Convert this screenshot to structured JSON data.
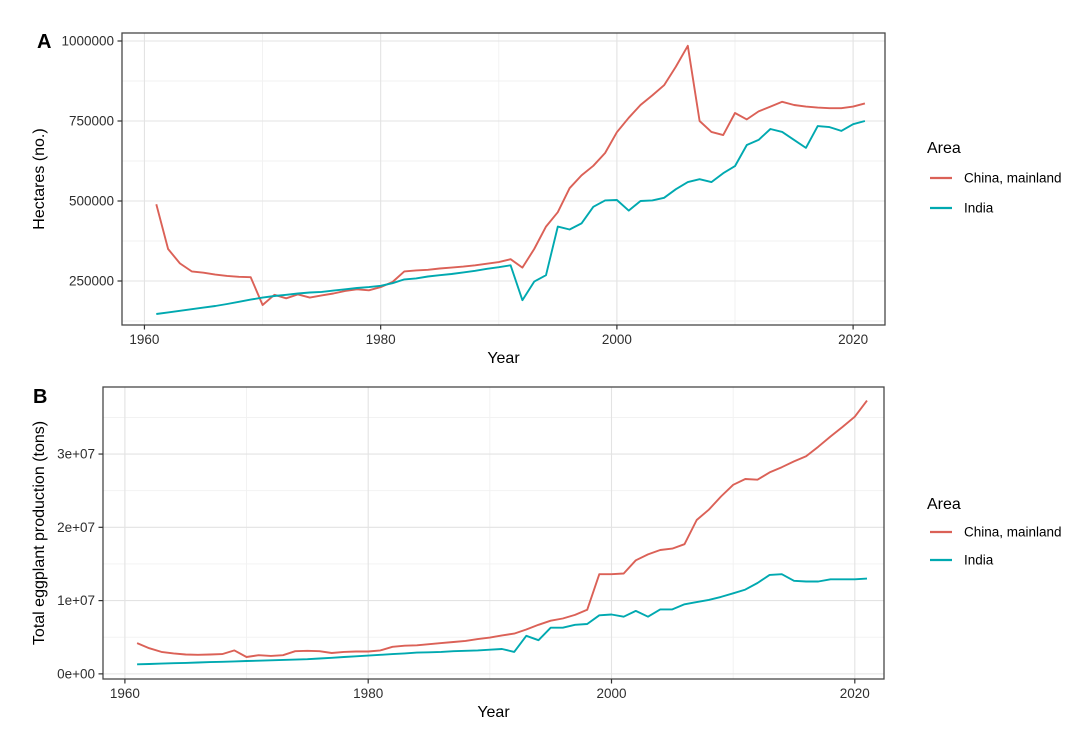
{
  "figure": {
    "background": "#ffffff",
    "border_color": "#474747",
    "grid_major_color": "#e3e3e3",
    "grid_minor_color": "#f1f1f1",
    "tick_color": "#333333",
    "text_color": "#2e2e2e",
    "title_color": "#000000",
    "series_colors": [
      "#db6157",
      "#00a9b0"
    ]
  },
  "legend": {
    "title": "Area",
    "entries": [
      {
        "label": "China, mainland",
        "color": "#db6157"
      },
      {
        "label": "India",
        "color": "#00a9b0"
      }
    ]
  },
  "chart_data": [
    {
      "type": "line",
      "tag": "A",
      "xlabel": "Year",
      "ylabel": "Hectares (no.)",
      "xlim": [
        1958.1,
        2022.7
      ],
      "ylim": [
        112500,
        1025000
      ],
      "x_ticks": [
        1960,
        1980,
        2000,
        2020
      ],
      "x_tick_labels": [
        "1960",
        "1980",
        "2000",
        "2020"
      ],
      "x_minor": [
        1970,
        1990,
        2010
      ],
      "y_ticks": [
        250000,
        500000,
        750000,
        1000000
      ],
      "y_tick_labels": [
        "250000",
        "500000",
        "750000",
        "1000000"
      ],
      "y_minor": [
        125000,
        375000,
        625000,
        875000
      ],
      "grid": true,
      "legend_position": "right",
      "x": [
        1961,
        1962,
        1963,
        1964,
        1965,
        1966,
        1967,
        1968,
        1969,
        1970,
        1971,
        1972,
        1973,
        1974,
        1975,
        1976,
        1977,
        1978,
        1979,
        1980,
        1981,
        1982,
        1983,
        1984,
        1985,
        1986,
        1987,
        1988,
        1989,
        1990,
        1991,
        1992,
        1993,
        1994,
        1995,
        1996,
        1997,
        1998,
        1999,
        2000,
        2001,
        2002,
        2003,
        2004,
        2005,
        2006,
        2007,
        2008,
        2009,
        2010,
        2011,
        2012,
        2013,
        2014,
        2015,
        2016,
        2017,
        2018,
        2019,
        2020,
        2021
      ],
      "series": [
        {
          "name": "China, mainland",
          "values": [
            490000,
            350000,
            305000,
            280000,
            276000,
            270000,
            266000,
            263000,
            262000,
            175000,
            207000,
            196000,
            208000,
            198000,
            205000,
            211000,
            219000,
            224000,
            221000,
            231000,
            247000,
            280000,
            283000,
            285000,
            289000,
            292000,
            295000,
            299000,
            304000,
            309000,
            318000,
            292000,
            350000,
            420000,
            465000,
            540000,
            580000,
            610000,
            650000,
            715000,
            760000,
            800000,
            830000,
            862000,
            920000,
            985000,
            750000,
            716000,
            706000,
            775000,
            755000,
            780000,
            795000,
            810000,
            800000,
            795000,
            792000,
            790000,
            790000,
            795000,
            805000
          ]
        },
        {
          "name": "India",
          "values": [
            147000,
            152000,
            157000,
            162000,
            167000,
            172000,
            178000,
            185000,
            192000,
            198000,
            203000,
            207000,
            211000,
            214000,
            216000,
            220000,
            224000,
            228000,
            231000,
            235000,
            243000,
            255000,
            258000,
            264000,
            268000,
            272000,
            277000,
            282000,
            288000,
            293000,
            299000,
            190000,
            248000,
            268000,
            420000,
            411000,
            430000,
            482000,
            502000,
            503000,
            470000,
            500000,
            502000,
            510000,
            537000,
            559000,
            568000,
            559000,
            587000,
            609000,
            675000,
            691000,
            725000,
            716000,
            691000,
            666000,
            734000,
            731000,
            719000,
            740000,
            750000
          ]
        }
      ]
    },
    {
      "type": "line",
      "tag": "B",
      "xlabel": "Year",
      "ylabel": "Total eggplant production (tons)",
      "xlim": [
        1958.2,
        2022.4
      ],
      "ylim": [
        -700000,
        39150000
      ],
      "x_ticks": [
        1960,
        1980,
        2000,
        2020
      ],
      "x_tick_labels": [
        "1960",
        "1980",
        "2000",
        "2020"
      ],
      "x_minor": [
        1970,
        1990,
        2010
      ],
      "y_ticks": [
        0,
        10000000,
        20000000,
        30000000
      ],
      "y_tick_labels": [
        "0e+00",
        "1e+07",
        "2e+07",
        "3e+07"
      ],
      "y_minor": [
        5000000,
        15000000,
        25000000,
        35000000
      ],
      "grid": true,
      "legend_position": "right",
      "x": [
        1961,
        1962,
        1963,
        1964,
        1965,
        1966,
        1967,
        1968,
        1969,
        1970,
        1971,
        1972,
        1973,
        1974,
        1975,
        1976,
        1977,
        1978,
        1979,
        1980,
        1981,
        1982,
        1983,
        1984,
        1985,
        1986,
        1987,
        1988,
        1989,
        1990,
        1991,
        1992,
        1993,
        1994,
        1995,
        1996,
        1997,
        1998,
        1999,
        2000,
        2001,
        2002,
        2003,
        2004,
        2005,
        2006,
        2007,
        2008,
        2009,
        2010,
        2011,
        2012,
        2013,
        2014,
        2015,
        2016,
        2017,
        2018,
        2019,
        2020,
        2021
      ],
      "series": [
        {
          "name": "China, mainland",
          "values": [
            4200000,
            3500000,
            3000000,
            2800000,
            2650000,
            2600000,
            2650000,
            2700000,
            3200000,
            2300000,
            2550000,
            2450000,
            2550000,
            3100000,
            3150000,
            3100000,
            2850000,
            3000000,
            3050000,
            3050000,
            3200000,
            3700000,
            3850000,
            3900000,
            4050000,
            4200000,
            4350000,
            4500000,
            4750000,
            4950000,
            5250000,
            5500000,
            6050000,
            6700000,
            7250000,
            7550000,
            8050000,
            8750000,
            13600000,
            13600000,
            13700000,
            15500000,
            16300000,
            16900000,
            17100000,
            17700000,
            21000000,
            22400000,
            24200000,
            25800000,
            26600000,
            26500000,
            27500000,
            28200000,
            29000000,
            29700000,
            31000000,
            32400000,
            33700000,
            35100000,
            37300000
          ]
        },
        {
          "name": "India",
          "values": [
            1300000,
            1350000,
            1400000,
            1450000,
            1500000,
            1550000,
            1600000,
            1650000,
            1700000,
            1750000,
            1800000,
            1850000,
            1900000,
            1950000,
            2000000,
            2100000,
            2200000,
            2300000,
            2400000,
            2500000,
            2600000,
            2700000,
            2800000,
            2900000,
            2950000,
            3000000,
            3100000,
            3150000,
            3200000,
            3300000,
            3400000,
            3000000,
            5200000,
            4600000,
            6300000,
            6300000,
            6700000,
            6800000,
            8000000,
            8100000,
            7800000,
            8600000,
            7800000,
            8800000,
            8800000,
            9500000,
            9800000,
            10100000,
            10500000,
            11000000,
            11500000,
            12400000,
            13500000,
            13600000,
            12700000,
            12600000,
            12600000,
            12900000,
            12900000,
            12900000,
            13000000
          ]
        }
      ]
    }
  ]
}
